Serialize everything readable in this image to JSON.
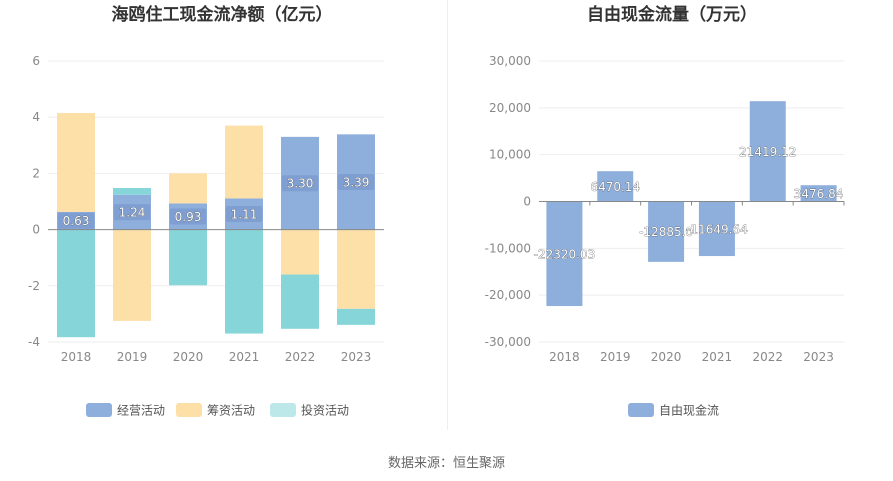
{
  "source_text": "数据来源：恒生聚源",
  "colors": {
    "operating": "#8eaedc",
    "financing": "#fddfa8",
    "investing": "#86d6d9",
    "investing_legend": "#bde8ea",
    "fcf": "#8eaedc"
  },
  "chart_data": [
    {
      "type": "bar",
      "stacked": true,
      "title": "海鸥住工现金流净额（亿元）",
      "categories": [
        "2018",
        "2019",
        "2020",
        "2021",
        "2022",
        "2023"
      ],
      "ylim": [
        -4,
        6
      ],
      "yticks": [
        -4,
        -2,
        0,
        2,
        4,
        6
      ],
      "grid": true,
      "legend_position": "bottom",
      "series": [
        {
          "name": "经营活动",
          "values": [
            0.63,
            1.24,
            0.93,
            1.11,
            3.3,
            3.39
          ],
          "labels": [
            "0.63",
            "1.24",
            "0.93",
            "1.11",
            "3.30",
            "3.39"
          ]
        },
        {
          "name": "筹资活动",
          "values": [
            3.52,
            -3.25,
            1.07,
            2.59,
            -1.6,
            -2.82
          ]
        },
        {
          "name": "投资活动",
          "values": [
            -3.83,
            0.24,
            -1.98,
            -3.7,
            -1.93,
            -0.57
          ]
        }
      ]
    },
    {
      "type": "bar",
      "title": "自由现金流量（万元）",
      "categories": [
        "2018",
        "2019",
        "2020",
        "2021",
        "2022",
        "2023"
      ],
      "ylim": [
        -30000,
        30000
      ],
      "yticks": [
        -30000,
        -20000,
        -10000,
        0,
        10000,
        20000,
        30000
      ],
      "yticklabels": [
        "-30,000",
        "-20,000",
        "-10,000",
        "0",
        "10,000",
        "20,000",
        "30,000"
      ],
      "grid": true,
      "legend_position": "bottom",
      "series": [
        {
          "name": "自由现金流",
          "values": [
            -22320.03,
            6470.14,
            -12885.0,
            -11649.64,
            21419.12,
            3476.84
          ],
          "labels": [
            "-22320.03",
            "6470.14",
            "-12885.0",
            "-11649.64",
            "21419.12",
            "3476.84"
          ]
        }
      ]
    }
  ]
}
